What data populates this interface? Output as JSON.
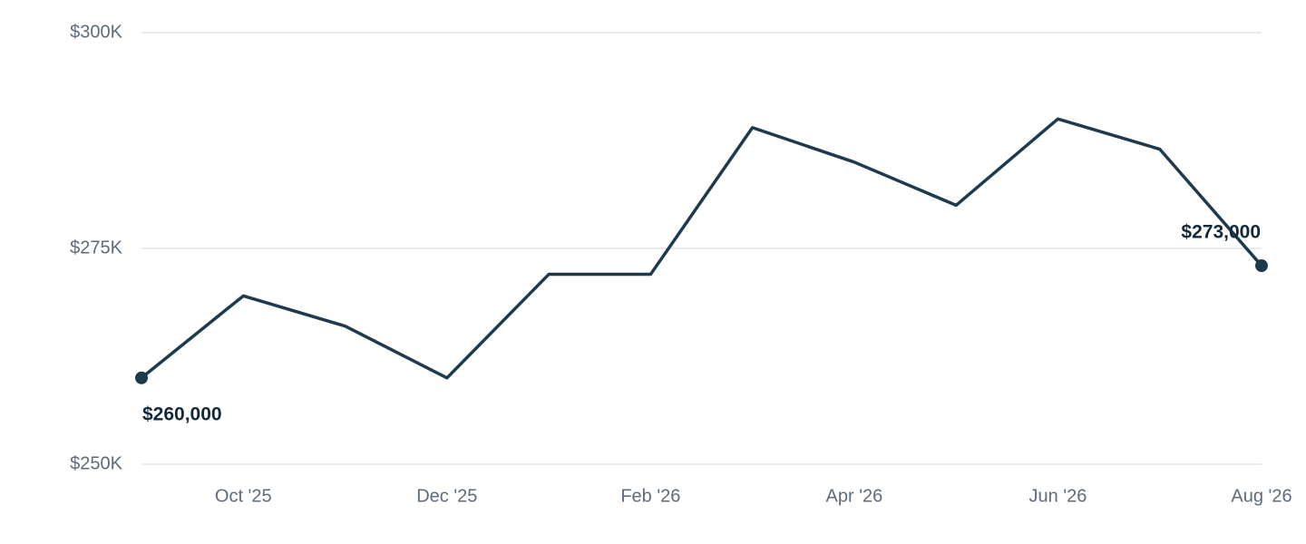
{
  "chart_data": {
    "type": "line",
    "categories": [
      null,
      "Oct '25",
      null,
      "Dec '25",
      null,
      "Feb '26",
      null,
      "Apr '26",
      null,
      "Jun '26",
      null,
      "Aug '26"
    ],
    "values": [
      260000,
      269500,
      266000,
      260000,
      272000,
      272000,
      289000,
      285000,
      280000,
      290000,
      286500,
      273000
    ],
    "value_labels": [
      "$260,000",
      null,
      null,
      null,
      null,
      null,
      null,
      null,
      null,
      null,
      null,
      "$273,000"
    ],
    "color": "#1d3a4f",
    "ylim": [
      250000,
      300000
    ],
    "yticks": [
      {
        "value": 250000,
        "label": "$250K"
      },
      {
        "value": 275000,
        "label": "$275K"
      },
      {
        "value": 300000,
        "label": "$300K"
      }
    ],
    "grid": true
  }
}
